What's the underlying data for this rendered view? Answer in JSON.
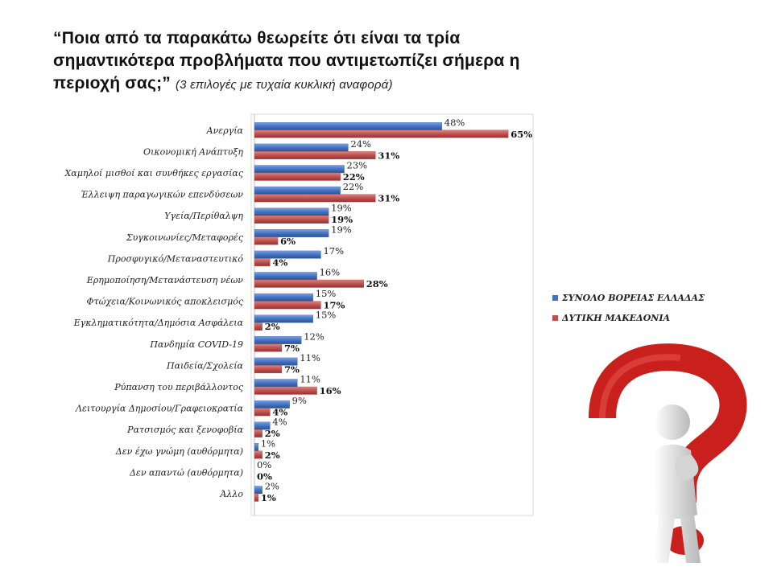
{
  "chart_data": {
    "type": "hbar",
    "title": "“Ποια από τα παρακάτω θεωρείτε ότι είναι τα τρία σημαντικότερα προβλήματα που αντιμετωπίζει σήμερα η περιοχή σας;”",
    "subtitle": "(3 επιλογές με τυχαία κυκλική αναφορά)",
    "categories": [
      "Ανεργία",
      "Οικονομική Ανάπτυξη",
      "Χαμηλοί μισθοί και συνθήκες εργασίας",
      "Έλλειψη παραγωγικών επενδύσεων",
      "Υγεία/Περίθαλψη",
      "Συγκοινωνίες/Μεταφορές",
      "Προσφυγικό/Μεταναστευτικό",
      "Ερημοποίηση/Μετανάστευση νέων",
      "Φτώχεια/Κοινωνικός αποκλεισμός",
      "Εγκληματικότητα/Δημόσια Ασφάλεια",
      "Πανδημία COVID-19",
      "Παιδεία/Σχολεία",
      "Ρύπανση του περιβάλλοντος",
      "Λειτουργία Δημοσίου/Γραφειοκρατία",
      "Ρατσισμός και ξενοφοβία",
      "Δεν έχω γνώμη (αυθόρμητα)",
      "Δεν απαντώ (αυθόρμητα)",
      "Άλλο"
    ],
    "series": [
      {
        "name": "ΣΥΝΟΛΟ ΒΟΡΕΙΑΣ ΕΛΛΑΔΑΣ",
        "color": "#4472c4",
        "values": [
          48,
          24,
          23,
          22,
          19,
          19,
          17,
          16,
          15,
          15,
          12,
          11,
          11,
          9,
          4,
          1,
          0,
          2
        ],
        "value_labels": [
          "48%",
          "24%",
          "23%",
          "22%",
          "19%",
          "19%",
          "17%",
          "16%",
          "15%",
          "15%",
          "12%",
          "11%",
          "11%",
          "9%",
          "4%",
          "1%",
          "0%",
          "2%"
        ]
      },
      {
        "name": "ΔΥΤΙΚΗ ΜΑΚΕΔΟΝΙΑ",
        "color": "#c0504d",
        "values": [
          65,
          31,
          22,
          31,
          19,
          6,
          4,
          28,
          17,
          2,
          7,
          7,
          16,
          4,
          2,
          2,
          0,
          1
        ],
        "value_labels": [
          "65%",
          "31%",
          "22%",
          "31%",
          "19%",
          "6%",
          "4%",
          "28%",
          "17%",
          "2%",
          "7%",
          "7%",
          "16%",
          "4%",
          "2%",
          "2%",
          "0%",
          "1%"
        ]
      }
    ],
    "legend": "right"
  }
}
